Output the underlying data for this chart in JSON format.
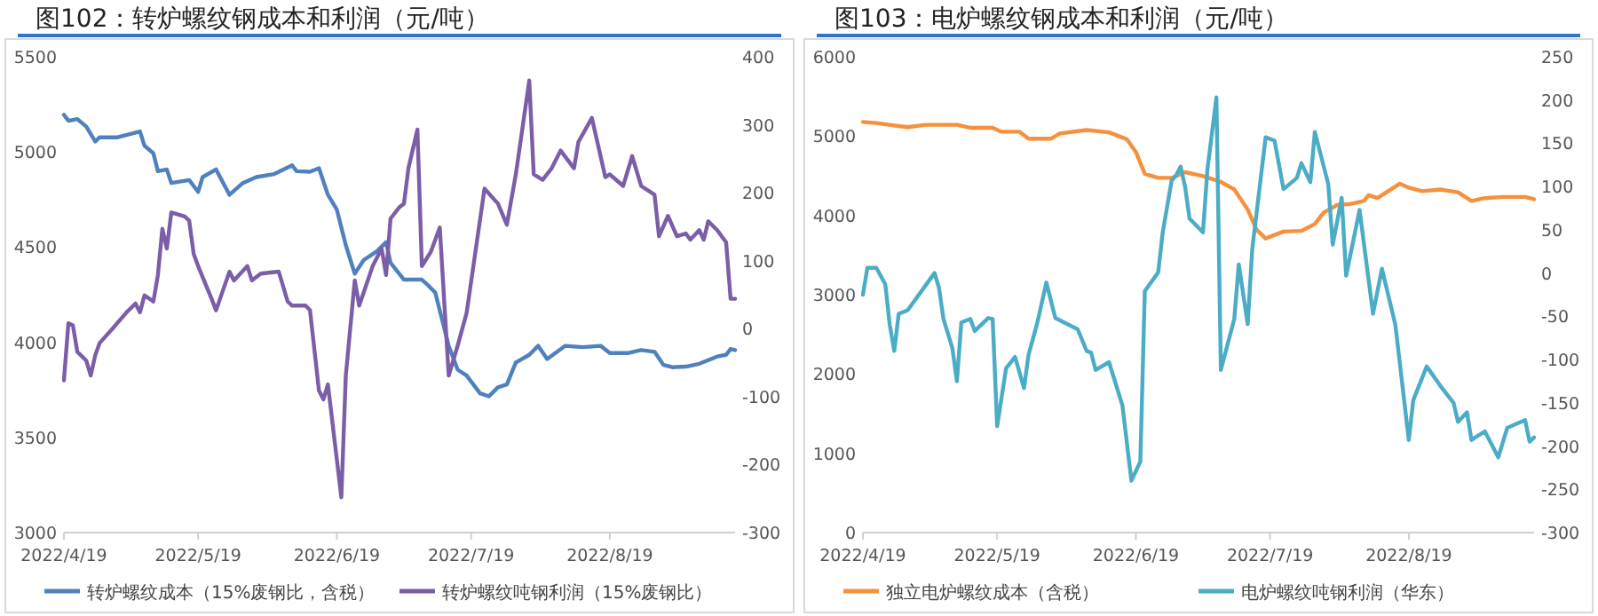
{
  "chart_data": [
    {
      "type": "line",
      "title": "图102：转炉螺纹钢成本和利润（元/吨）",
      "legend": "bottom",
      "xlim": [
        "2022-04-19",
        "2022-09-16"
      ],
      "xticks": [
        {
          "value": "2022-04-19",
          "label": "2022/4/19"
        },
        {
          "value": "2022-05-19",
          "label": "2022/5/19"
        },
        {
          "value": "2022-06-19",
          "label": "2022/6/19"
        },
        {
          "value": "2022-07-19",
          "label": "2022/7/19"
        },
        {
          "value": "2022-08-19",
          "label": "2022/8/19"
        }
      ],
      "ylim": [
        3000,
        5500
      ],
      "yticks": [
        3000,
        3500,
        4000,
        4500,
        5000,
        5500
      ],
      "y2lim": [
        -300,
        400
      ],
      "y2ticks": [
        -300,
        -200,
        -100,
        0,
        100,
        200,
        300,
        400
      ],
      "series": [
        {
          "name": "转炉螺纹成本（15%废钢比，含税）",
          "color": "#4f81bd",
          "axis": "y",
          "x": [
            "2022-04-19",
            "2022-04-20",
            "2022-04-22",
            "2022-04-24",
            "2022-04-26",
            "2022-04-27",
            "2022-05-01",
            "2022-05-06",
            "2022-05-07",
            "2022-05-09",
            "2022-05-10",
            "2022-05-12",
            "2022-05-13",
            "2022-05-17",
            "2022-05-19",
            "2022-05-20",
            "2022-05-23",
            "2022-05-26",
            "2022-05-29",
            "2022-06-01",
            "2022-06-05",
            "2022-06-09",
            "2022-06-10",
            "2022-06-13",
            "2022-06-15",
            "2022-06-17",
            "2022-06-19",
            "2022-06-21",
            "2022-06-23",
            "2022-06-25",
            "2022-06-28",
            "2022-06-30",
            "2022-07-01",
            "2022-07-04",
            "2022-07-08",
            "2022-07-09",
            "2022-07-11",
            "2022-07-12",
            "2022-07-14",
            "2022-07-16",
            "2022-07-18",
            "2022-07-21",
            "2022-07-23",
            "2022-07-25",
            "2022-07-27",
            "2022-07-29",
            "2022-08-01",
            "2022-08-03",
            "2022-08-05",
            "2022-08-09",
            "2022-08-13",
            "2022-08-17",
            "2022-08-19",
            "2022-08-23",
            "2022-08-26",
            "2022-08-29",
            "2022-08-31",
            "2022-09-02",
            "2022-09-05",
            "2022-09-08",
            "2022-09-12",
            "2022-09-14",
            "2022-09-15",
            "2022-09-16"
          ],
          "values": [
            5195,
            5164,
            5173,
            5133,
            5055,
            5077,
            5077,
            5108,
            5033,
            4993,
            4899,
            4908,
            4837,
            4852,
            4790,
            4868,
            4908,
            4775,
            4837,
            4868,
            4884,
            4930,
            4899,
            4896,
            4915,
            4775,
            4697,
            4510,
            4360,
            4432,
            4479,
            4526,
            4417,
            4329,
            4329,
            4308,
            4261,
            4167,
            3981,
            3856,
            3825,
            3732,
            3716,
            3763,
            3778,
            3894,
            3934,
            3981,
            3912,
            3981,
            3974,
            3981,
            3943,
            3943,
            3959,
            3950,
            3881,
            3869,
            3872,
            3887,
            3925,
            3934,
            3965,
            3959
          ]
        },
        {
          "name": "转炉螺纹吨钢利润（15%废钢比）",
          "color": "#7b5ea7",
          "axis": "y2",
          "x": [
            "2022-04-19",
            "2022-04-20",
            "2022-04-21",
            "2022-04-22",
            "2022-04-24",
            "2022-04-25",
            "2022-04-26",
            "2022-04-27",
            "2022-04-30",
            "2022-05-03",
            "2022-05-05",
            "2022-05-06",
            "2022-05-07",
            "2022-05-09",
            "2022-05-10",
            "2022-05-11",
            "2022-05-12",
            "2022-05-13",
            "2022-05-16",
            "2022-05-17",
            "2022-05-18",
            "2022-05-19",
            "2022-05-22",
            "2022-05-23",
            "2022-05-26",
            "2022-05-27",
            "2022-05-30",
            "2022-05-31",
            "2022-06-02",
            "2022-06-06",
            "2022-06-08",
            "2022-06-09",
            "2022-06-12",
            "2022-06-13",
            "2022-06-15",
            "2022-06-16",
            "2022-06-17",
            "2022-06-20",
            "2022-06-21",
            "2022-06-23",
            "2022-06-24",
            "2022-06-27",
            "2022-06-29",
            "2022-06-30",
            "2022-07-01",
            "2022-07-03",
            "2022-07-04",
            "2022-07-05",
            "2022-07-07",
            "2022-07-08",
            "2022-07-10",
            "2022-07-12",
            "2022-07-14",
            "2022-07-16",
            "2022-07-18",
            "2022-07-22",
            "2022-07-25",
            "2022-07-27",
            "2022-07-29",
            "2022-08-01",
            "2022-08-02",
            "2022-08-04",
            "2022-08-06",
            "2022-08-08",
            "2022-08-11",
            "2022-08-12",
            "2022-08-15",
            "2022-08-18",
            "2022-08-19",
            "2022-08-22",
            "2022-08-24",
            "2022-08-26",
            "2022-08-29",
            "2022-08-30",
            "2022-09-01",
            "2022-09-03",
            "2022-09-05",
            "2022-09-06",
            "2022-09-08",
            "2022-09-09",
            "2022-09-10",
            "2022-09-12",
            "2022-09-14",
            "2022-09-15",
            "2022-09-16"
          ],
          "values": [
            -76,
            8,
            5,
            -34,
            -47,
            -69,
            -39,
            -21,
            1,
            24,
            37,
            24,
            49,
            40,
            79,
            147,
            118,
            171,
            165,
            159,
            110,
            92,
            44,
            27,
            84,
            71,
            92,
            71,
            81,
            84,
            40,
            34,
            34,
            27,
            -91,
            -104,
            -82,
            -248,
            -69,
            71,
            34,
            92,
            118,
            79,
            162,
            179,
            184,
            236,
            293,
            92,
            113,
            149,
            -69,
            -25,
            23,
            206,
            184,
            153,
            227,
            365,
            227,
            219,
            236,
            262,
            236,
            275,
            310,
            223,
            227,
            210,
            254,
            210,
            197,
            136,
            166,
            136,
            140,
            131,
            145,
            131,
            158,
            145,
            127,
            44,
            44
          ]
        }
      ]
    },
    {
      "type": "line",
      "title": "图103：电炉螺纹钢成本和利润（元/吨）",
      "legend": "bottom",
      "xlim": [
        "2022-04-19",
        "2022-09-16"
      ],
      "xticks": [
        {
          "value": "2022-04-19",
          "label": "2022/4/19"
        },
        {
          "value": "2022-05-19",
          "label": "2022/5/19"
        },
        {
          "value": "2022-06-19",
          "label": "2022/6/19"
        },
        {
          "value": "2022-07-19",
          "label": "2022/7/19"
        },
        {
          "value": "2022-08-19",
          "label": "2022/8/19"
        }
      ],
      "ylim": [
        0,
        6000
      ],
      "yticks": [
        0,
        1000,
        2000,
        3000,
        4000,
        5000,
        6000
      ],
      "y2lim": [
        -300,
        250
      ],
      "y2ticks": [
        -300,
        -250,
        -200,
        -150,
        -100,
        -50,
        0,
        50,
        100,
        150,
        200,
        250
      ],
      "series": [
        {
          "name": "独立电炉螺纹成本（含税）",
          "color": "#f5913e",
          "axis": "y",
          "x": [
            "2022-04-19",
            "2022-04-22",
            "2022-04-29",
            "2022-05-03",
            "2022-05-10",
            "2022-05-13",
            "2022-05-18",
            "2022-05-20",
            "2022-05-24",
            "2022-05-26",
            "2022-05-31",
            "2022-06-02",
            "2022-06-08",
            "2022-06-13",
            "2022-06-17",
            "2022-06-19",
            "2022-06-21",
            "2022-06-24",
            "2022-06-27",
            "2022-06-30",
            "2022-07-04",
            "2022-07-08",
            "2022-07-11",
            "2022-07-14",
            "2022-07-16",
            "2022-07-18",
            "2022-07-22",
            "2022-07-26",
            "2022-07-29",
            "2022-07-31",
            "2022-08-03",
            "2022-08-06",
            "2022-08-09",
            "2022-08-10",
            "2022-08-12",
            "2022-08-15",
            "2022-08-17",
            "2022-08-19",
            "2022-08-22",
            "2022-08-26",
            "2022-08-30",
            "2022-09-02",
            "2022-09-05",
            "2022-09-09",
            "2022-09-14",
            "2022-09-16"
          ],
          "values": [
            5178,
            5164,
            5113,
            5142,
            5142,
            5105,
            5105,
            5055,
            5055,
            4967,
            4967,
            5033,
            5076,
            5047,
            4960,
            4800,
            4524,
            4473,
            4473,
            4545,
            4495,
            4422,
            4327,
            4073,
            3818,
            3709,
            3796,
            3804,
            3891,
            4036,
            4131,
            4145,
            4182,
            4255,
            4218,
            4327,
            4400,
            4349,
            4305,
            4327,
            4291,
            4182,
            4218,
            4233,
            4233,
            4204
          ]
        },
        {
          "name": "电炉螺纹吨钢利润（华东）",
          "color": "#4bacc6",
          "axis": "y2",
          "x": [
            "2022-04-19",
            "2022-04-20",
            "2022-04-22",
            "2022-04-24",
            "2022-04-25",
            "2022-04-26",
            "2022-04-27",
            "2022-04-29",
            "2022-05-05",
            "2022-05-06",
            "2022-05-07",
            "2022-05-09",
            "2022-05-10",
            "2022-05-11",
            "2022-05-13",
            "2022-05-14",
            "2022-05-17",
            "2022-05-18",
            "2022-05-19",
            "2022-05-21",
            "2022-05-23",
            "2022-05-25",
            "2022-05-26",
            "2022-05-28",
            "2022-05-30",
            "2022-06-01",
            "2022-06-06",
            "2022-06-08",
            "2022-06-09",
            "2022-06-10",
            "2022-06-13",
            "2022-06-16",
            "2022-06-18",
            "2022-06-20",
            "2022-06-21",
            "2022-06-24",
            "2022-06-25",
            "2022-06-27",
            "2022-06-28",
            "2022-06-29",
            "2022-06-30",
            "2022-07-01",
            "2022-07-04",
            "2022-07-05",
            "2022-07-07",
            "2022-07-08",
            "2022-07-11",
            "2022-07-12",
            "2022-07-14",
            "2022-07-15",
            "2022-07-18",
            "2022-07-20",
            "2022-07-22",
            "2022-07-25",
            "2022-07-26",
            "2022-07-28",
            "2022-07-29",
            "2022-08-01",
            "2022-08-02",
            "2022-08-04",
            "2022-08-05",
            "2022-08-08",
            "2022-08-11",
            "2022-08-13",
            "2022-08-16",
            "2022-08-19",
            "2022-08-20",
            "2022-08-23",
            "2022-08-26",
            "2022-08-29",
            "2022-08-30",
            "2022-09-01",
            "2022-09-02",
            "2022-09-05",
            "2022-09-08",
            "2022-09-10",
            "2022-09-14",
            "2022-09-15",
            "2022-09-16"
          ],
          "values": [
            -25,
            6,
            6,
            -13,
            -60,
            -90,
            -47,
            -43,
            0,
            -17,
            -53,
            -87,
            -125,
            -57,
            -53,
            -67,
            -52,
            -53,
            -177,
            -110,
            -97,
            -133,
            -95,
            -57,
            -11,
            -52,
            -65,
            -90,
            -92,
            -112,
            -103,
            -153,
            -240,
            -218,
            -21,
            1,
            47,
            107,
            113,
            123,
            100,
            63,
            47,
            120,
            203,
            -112,
            -53,
            10,
            -59,
            27,
            157,
            153,
            97,
            110,
            127,
            105,
            163,
            103,
            33,
            87,
            -3,
            73,
            -47,
            5,
            -60,
            -193,
            -147,
            -108,
            -130,
            -150,
            -172,
            -161,
            -193,
            -183,
            -213,
            -179,
            -170,
            -195,
            -190
          ]
        }
      ]
    }
  ]
}
